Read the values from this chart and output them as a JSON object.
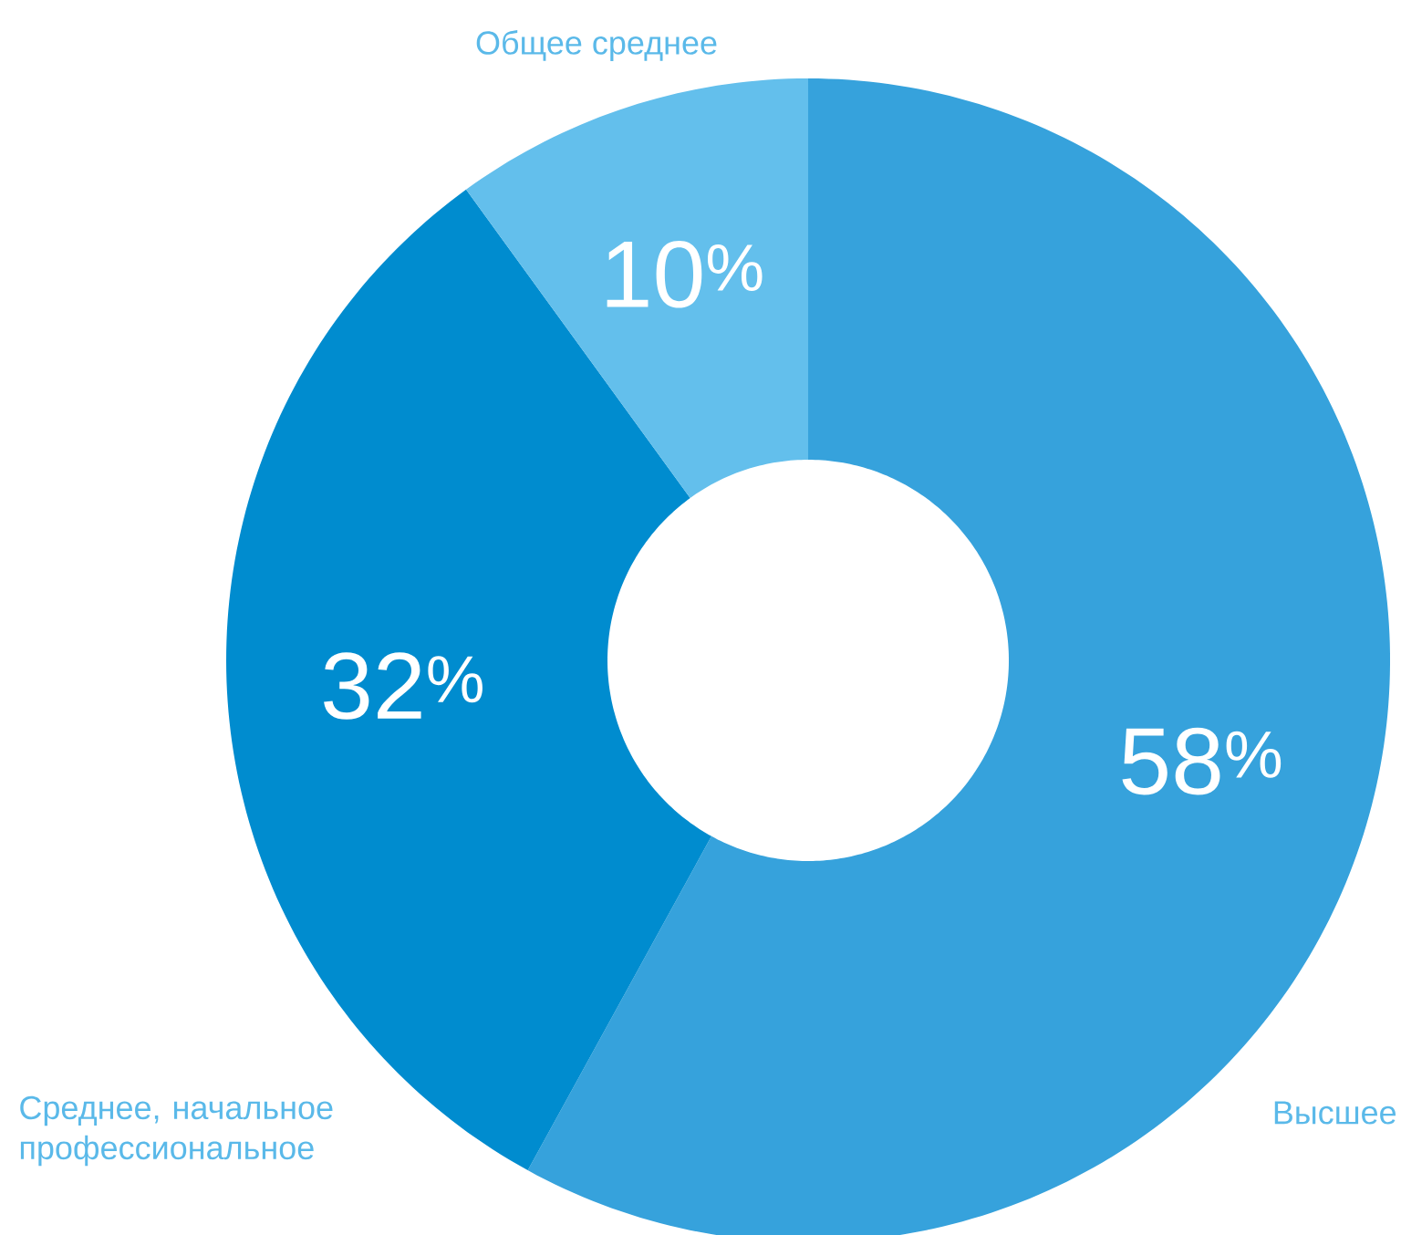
{
  "chart_data": {
    "type": "donut",
    "categories": [
      "Высшее",
      "Среднее, начальное профессиональное",
      "Общее среднее"
    ],
    "values": [
      58,
      32,
      10
    ],
    "colors": [
      "#36a2dc",
      "#008ccf",
      "#63bfec"
    ],
    "value_labels": [
      "58$^{%}$",
      "32$^{%}$",
      "10$^{%}$"
    ]
  }
}
